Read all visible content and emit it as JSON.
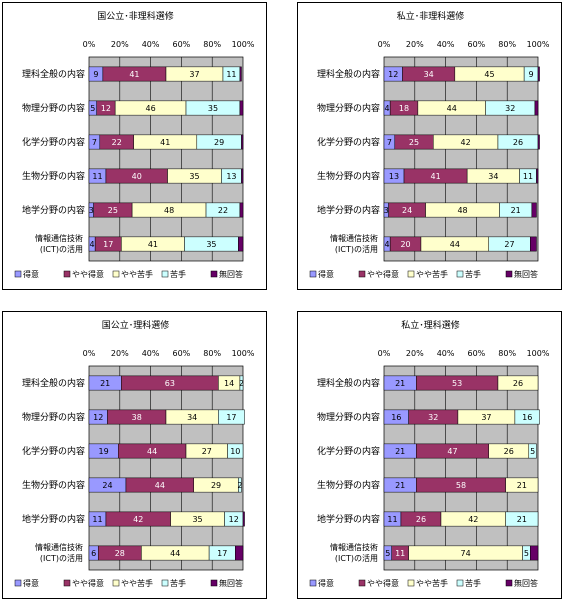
{
  "colors": {
    "得意": "#9999ff",
    "やや得意": "#993366",
    "やや苦手": "#ffffcc",
    "苦手": "#ccffff",
    "無回答": "#660066",
    "plot_bg": "#c0c0c0",
    "border": "#000000"
  },
  "chart_data": [
    {
      "type": "bar",
      "stacked": true,
      "orientation": "horizontal",
      "title": "国公立･非理科選修",
      "categories": [
        "理科全般の内容",
        "物理分野の内容",
        "化学分野の内容",
        "生物分野の内容",
        "地学分野の内容",
        "情報通信技術(ICT)の活用"
      ],
      "category_lines": [
        [
          "理科全般の内容"
        ],
        [
          "物理分野の内容"
        ],
        [
          "化学分野の内容"
        ],
        [
          "生物分野の内容"
        ],
        [
          "地学分野の内容"
        ],
        [
          "情報通信技術",
          "(ICT)の活用"
        ]
      ],
      "x_ticks": [
        "0%",
        "20%",
        "40%",
        "60%",
        "80%",
        "100%"
      ],
      "xlim": [
        0,
        100
      ],
      "series": [
        {
          "name": "得意",
          "values": [
            9,
            5,
            7,
            11,
            3,
            4
          ]
        },
        {
          "name": "やや得意",
          "values": [
            41,
            12,
            22,
            40,
            25,
            17
          ]
        },
        {
          "name": "やや苦手",
          "values": [
            37,
            46,
            41,
            35,
            48,
            41
          ]
        },
        {
          "name": "苦手",
          "values": [
            11,
            35,
            29,
            13,
            22,
            35
          ]
        },
        {
          "name": "無回答",
          "values": [
            1,
            2,
            1,
            1,
            2,
            3
          ]
        }
      ],
      "legend": [
        "得意",
        "やや得意",
        "やや苦手",
        "苦手",
        "無回答"
      ],
      "legend_position": "bottom"
    },
    {
      "type": "bar",
      "stacked": true,
      "orientation": "horizontal",
      "title": "私立･非理科選修",
      "categories": [
        "理科全般の内容",
        "物理分野の内容",
        "化学分野の内容",
        "生物分野の内容",
        "地学分野の内容",
        "情報通信技術(ICT)の活用"
      ],
      "category_lines": [
        [
          "理科全般の内容"
        ],
        [
          "物理分野の内容"
        ],
        [
          "化学分野の内容"
        ],
        [
          "生物分野の内容"
        ],
        [
          "地学分野の内容"
        ],
        [
          "情報通信技術",
          "(ICT)の活用"
        ]
      ],
      "x_ticks": [
        "0%",
        "20%",
        "40%",
        "60%",
        "80%",
        "100%"
      ],
      "xlim": [
        0,
        100
      ],
      "series": [
        {
          "name": "得意",
          "values": [
            12,
            4,
            7,
            13,
            3,
            4
          ]
        },
        {
          "name": "やや得意",
          "values": [
            34,
            18,
            25,
            41,
            24,
            20
          ]
        },
        {
          "name": "やや苦手",
          "values": [
            45,
            44,
            42,
            34,
            48,
            44
          ]
        },
        {
          "name": "苦手",
          "values": [
            9,
            32,
            26,
            11,
            21,
            27
          ]
        },
        {
          "name": "無回答",
          "values": [
            1,
            2,
            1,
            1,
            3,
            4
          ]
        }
      ],
      "legend": [
        "得意",
        "やや得意",
        "やや苦手",
        "苦手",
        "無回答"
      ],
      "legend_position": "bottom"
    },
    {
      "type": "bar",
      "stacked": true,
      "orientation": "horizontal",
      "title": "国公立･理科選修",
      "categories": [
        "理科全般の内容",
        "物理分野の内容",
        "化学分野の内容",
        "生物分野の内容",
        "地学分野の内容",
        "情報通信技術(ICT)の活用"
      ],
      "category_lines": [
        [
          "理科全般の内容"
        ],
        [
          "物理分野の内容"
        ],
        [
          "化学分野の内容"
        ],
        [
          "生物分野の内容"
        ],
        [
          "地学分野の内容"
        ],
        [
          "情報通信技術",
          "(ICT)の活用"
        ]
      ],
      "x_ticks": [
        "0%",
        "20%",
        "40%",
        "60%",
        "80%",
        "100%"
      ],
      "xlim": [
        0,
        100
      ],
      "series": [
        {
          "name": "得意",
          "values": [
            21,
            12,
            19,
            24,
            11,
            6
          ]
        },
        {
          "name": "やや得意",
          "values": [
            63,
            38,
            44,
            44,
            42,
            28
          ]
        },
        {
          "name": "やや苦手",
          "values": [
            14,
            34,
            27,
            29,
            35,
            44
          ]
        },
        {
          "name": "苦手",
          "values": [
            2,
            17,
            10,
            2,
            12,
            17
          ]
        },
        {
          "name": "無回答",
          "values": [
            0,
            0,
            0,
            0,
            1,
            5
          ]
        }
      ],
      "legend": [
        "得意",
        "やや得意",
        "やや苦手",
        "苦手",
        "無回答"
      ],
      "legend_position": "bottom"
    },
    {
      "type": "bar",
      "stacked": true,
      "orientation": "horizontal",
      "title": "私立･理科選修",
      "categories": [
        "理科全般の内容",
        "物理分野の内容",
        "化学分野の内容",
        "生物分野の内容",
        "地学分野の内容",
        "情報通信技術(ICT)の活用"
      ],
      "category_lines": [
        [
          "理科全般の内容"
        ],
        [
          "物理分野の内容"
        ],
        [
          "化学分野の内容"
        ],
        [
          "生物分野の内容"
        ],
        [
          "地学分野の内容"
        ],
        [
          "情報通信技術",
          "(ICT)の活用"
        ]
      ],
      "x_ticks": [
        "0%",
        "20%",
        "40%",
        "60%",
        "80%",
        "100%"
      ],
      "xlim": [
        0,
        100
      ],
      "series": [
        {
          "name": "得意",
          "values": [
            21,
            16,
            21,
            21,
            11,
            5
          ]
        },
        {
          "name": "やや得意",
          "values": [
            53,
            32,
            47,
            58,
            26,
            11
          ]
        },
        {
          "name": "やや苦手",
          "values": [
            26,
            37,
            26,
            21,
            42,
            74
          ]
        },
        {
          "name": "苦手",
          "values": [
            0,
            16,
            5,
            0,
            21,
            5
          ]
        },
        {
          "name": "無回答",
          "values": [
            0,
            0,
            0,
            0,
            0,
            5
          ]
        }
      ],
      "legend": [
        "得意",
        "やや得意",
        "やや苦手",
        "苦手",
        "無回答"
      ],
      "legend_position": "bottom"
    }
  ]
}
